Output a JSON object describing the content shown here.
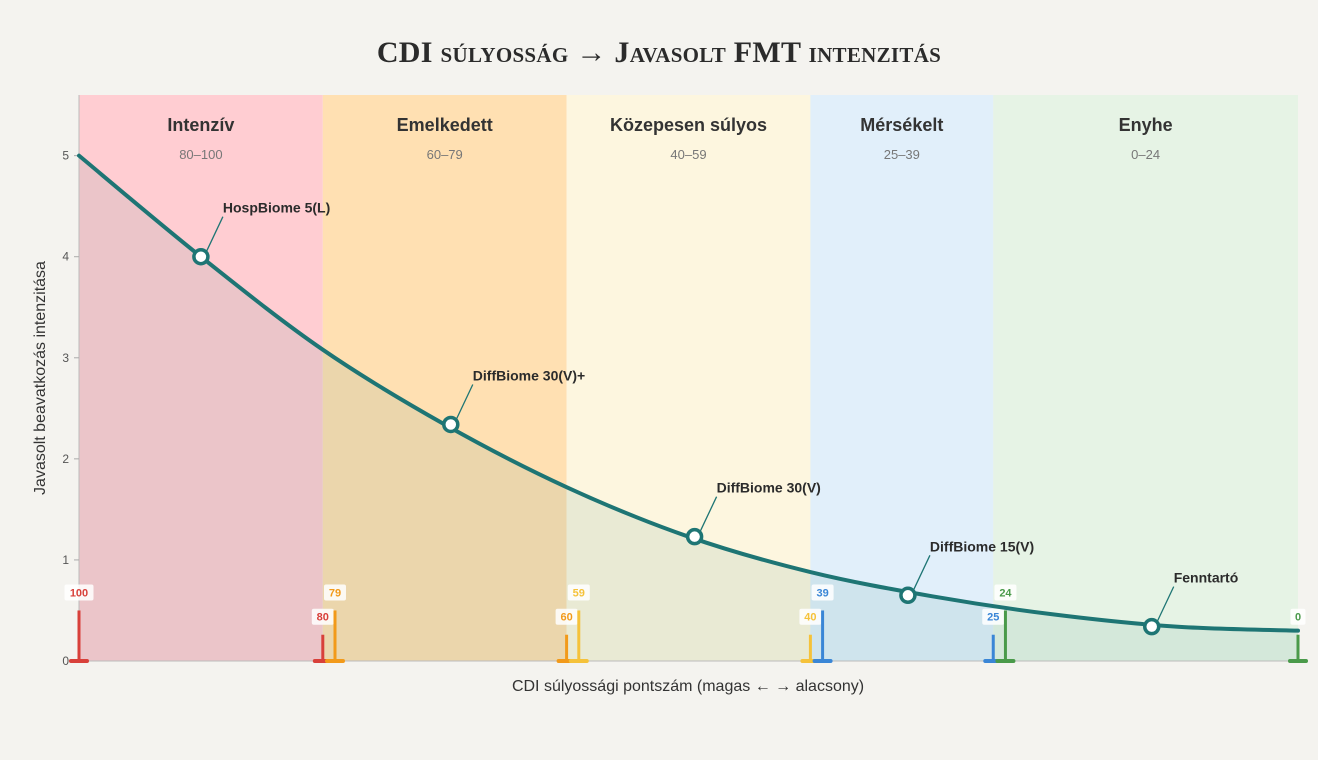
{
  "chart_data": {
    "type": "line",
    "title": "CDI súlyosság → Javasolt FMT intenzitás",
    "xlabel": "CDI súlyossági pontszám  (magas ← → alacsony)",
    "ylabel": "Javasolt beavatkozás intenzitása",
    "xlim": [
      100,
      0
    ],
    "ylim": [
      0,
      5.6
    ],
    "yticks": [
      "0",
      "1",
      "2",
      "3",
      "4",
      "5"
    ],
    "grid": false,
    "bands": [
      {
        "name": "Intenzív",
        "range": "80–100",
        "from": 100,
        "to": 80,
        "color": "#ffcdd2"
      },
      {
        "name": "Emelkedett",
        "range": "60–79",
        "from": 80,
        "to": 60,
        "color": "#ffe0b2"
      },
      {
        "name": "Közepesen súlyos",
        "range": "40–59",
        "from": 60,
        "to": 40,
        "color": "#fdf6df"
      },
      {
        "name": "Mérsékelt",
        "range": "25–39",
        "from": 40,
        "to": 25,
        "color": "#e1effa"
      },
      {
        "name": "Enyhe",
        "range": "0–24",
        "from": 25,
        "to": 0,
        "color": "#e6f3e5"
      }
    ],
    "curve": {
      "x": [
        100,
        90,
        80,
        70,
        60,
        50,
        40,
        30,
        20,
        10,
        0
      ],
      "y": [
        5.0,
        4.0,
        3.08,
        2.34,
        1.72,
        1.23,
        0.88,
        0.64,
        0.46,
        0.34,
        0.3
      ]
    },
    "products": [
      {
        "label": "HospBiome 5(L)",
        "x": 90,
        "y": 4.0
      },
      {
        "label": "DiffBiome 30(V)+",
        "x": 69.5,
        "y": 2.34
      },
      {
        "label": "DiffBiome 30(V)",
        "x": 49.5,
        "y": 1.23
      },
      {
        "label": "DiffBiome 15(V)",
        "x": 32,
        "y": 0.65
      },
      {
        "label": "Fenntartó",
        "x": 12,
        "y": 0.34
      }
    ],
    "boundary_markers": [
      {
        "label": "100",
        "x": 100,
        "height": 0.5,
        "color": "#d8403a"
      },
      {
        "label": "80",
        "x": 80,
        "height": 0.26,
        "color": "#d8403a"
      },
      {
        "label": "79",
        "x": 79,
        "height": 0.5,
        "color": "#f29a1a"
      },
      {
        "label": "60",
        "x": 60,
        "height": 0.26,
        "color": "#f29a1a"
      },
      {
        "label": "59",
        "x": 59,
        "height": 0.5,
        "color": "#f5c23a"
      },
      {
        "label": "40",
        "x": 40,
        "height": 0.26,
        "color": "#f5c23a"
      },
      {
        "label": "39",
        "x": 39,
        "height": 0.5,
        "color": "#3a86d6"
      },
      {
        "label": "25",
        "x": 25,
        "height": 0.26,
        "color": "#3a86d6"
      },
      {
        "label": "24",
        "x": 24,
        "height": 0.5,
        "color": "#4a9a4a"
      },
      {
        "label": "0",
        "x": 0,
        "height": 0.26,
        "color": "#4a9a4a"
      }
    ],
    "colors": {
      "curve": "#1e7574",
      "marker_fill": "#ffffff"
    }
  }
}
